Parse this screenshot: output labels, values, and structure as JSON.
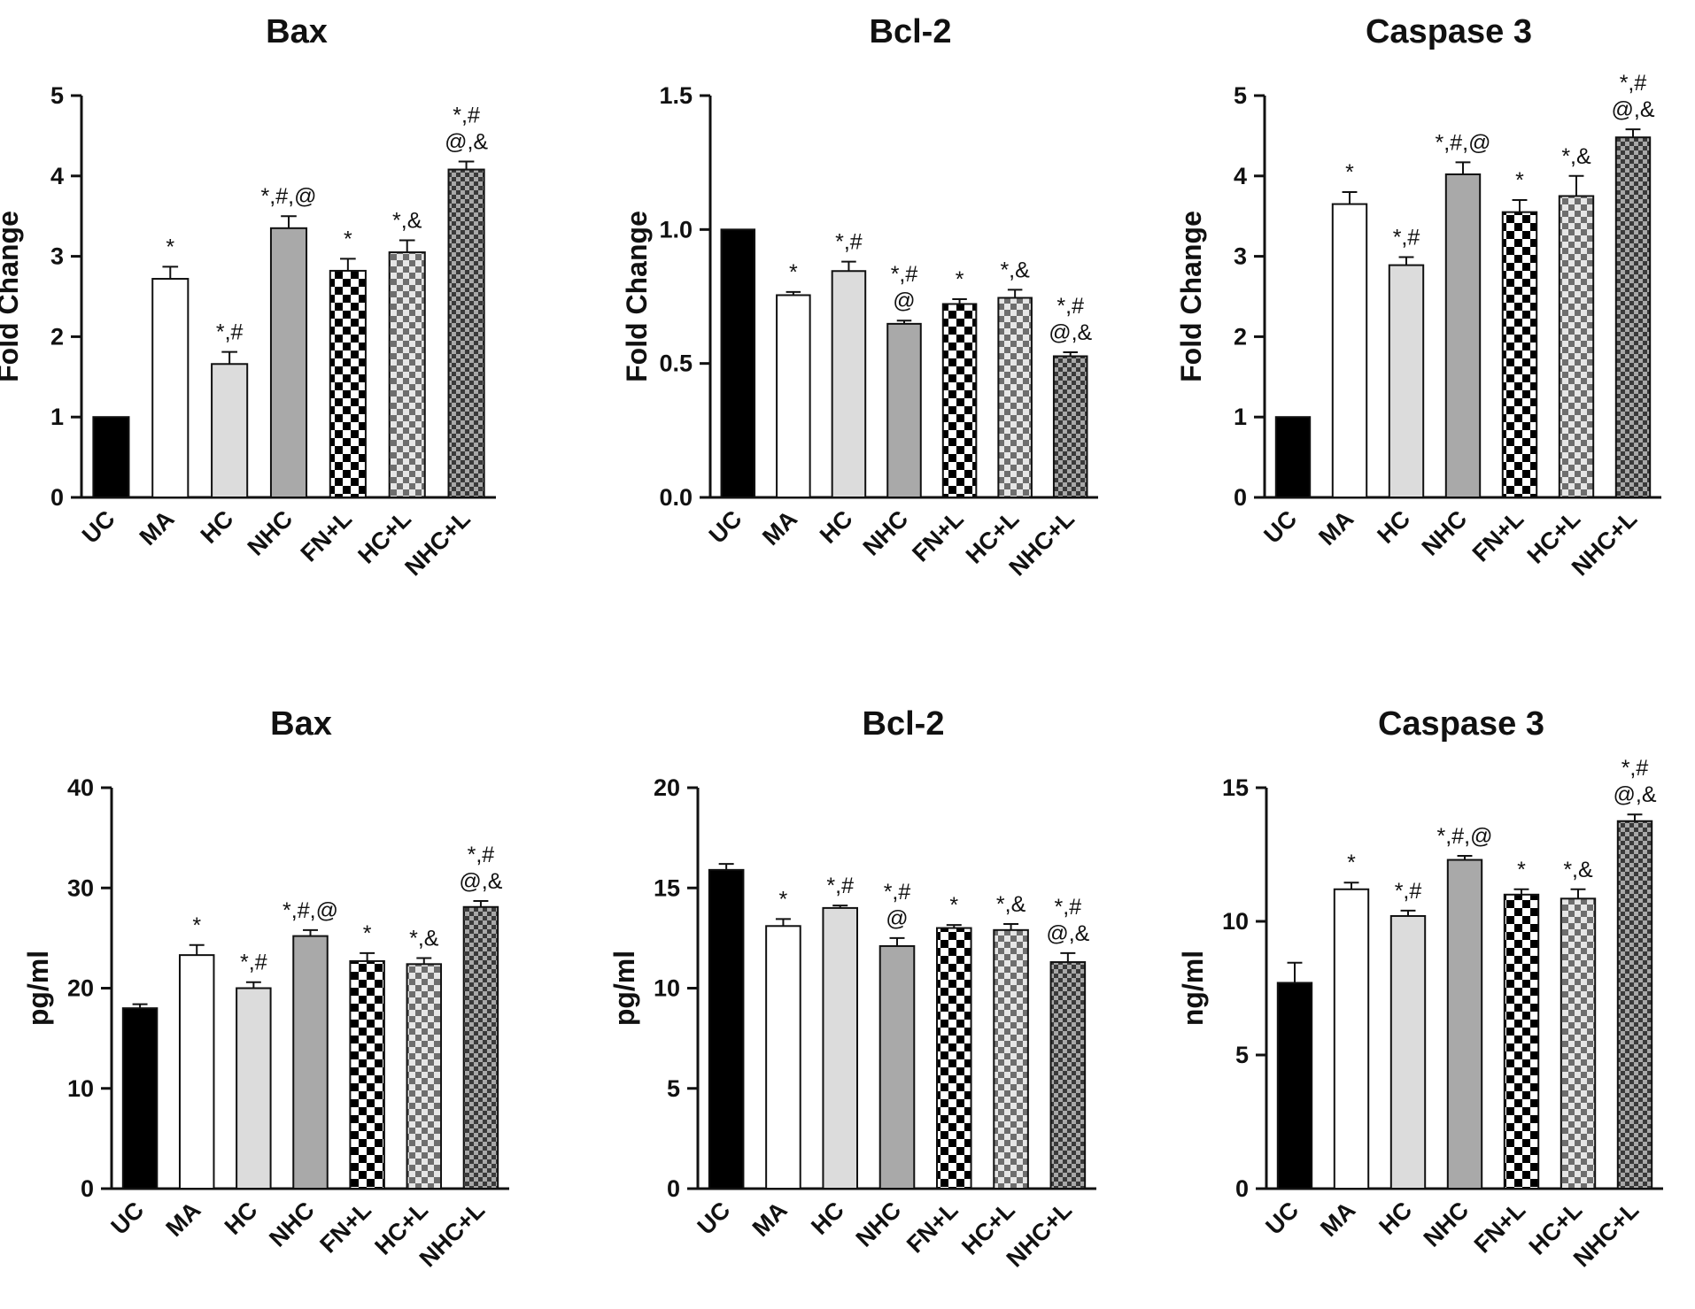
{
  "figure_description_none": "",
  "palette": {
    "UC": "#000000",
    "MA": "#ffffff",
    "HC": "#dcdcdc",
    "NHC": "#a9a9a9",
    "FN+L": "checker-large",
    "HC+L": "checker-medium",
    "NHC+L": "checker-small-dark"
  },
  "chart_data": [
    {
      "type": "bar",
      "title": "Bax",
      "ylabel": "Fold Change",
      "xlabel": "",
      "categories": [
        "UC",
        "MA",
        "HC",
        "NHC",
        "FN+L",
        "HC+L",
        "NHC+L"
      ],
      "values": [
        1.0,
        2.72,
        1.66,
        3.35,
        2.82,
        3.05,
        4.08
      ],
      "errors": [
        0.0,
        0.15,
        0.15,
        0.15,
        0.15,
        0.15,
        0.1
      ],
      "significance": [
        [],
        [
          "*"
        ],
        [
          "*,#"
        ],
        [
          "*,#,@"
        ],
        [
          "*"
        ],
        [
          "*,&"
        ],
        [
          "*,#",
          "@,&"
        ]
      ],
      "ylim": [
        0,
        5
      ],
      "yticks": [
        0,
        1,
        2,
        3,
        4,
        5
      ],
      "ytick_labels": [
        "0",
        "1",
        "2",
        "3",
        "4",
        "5"
      ]
    },
    {
      "type": "bar",
      "title": "Bcl-2",
      "ylabel": "Fold Change",
      "xlabel": "",
      "categories": [
        "UC",
        "MA",
        "HC",
        "NHC",
        "FN+L",
        "HC+L",
        "NHC+L"
      ],
      "values": [
        1.0,
        0.755,
        0.845,
        0.648,
        0.722,
        0.745,
        0.527
      ],
      "errors": [
        0.0,
        0.012,
        0.035,
        0.012,
        0.018,
        0.03,
        0.015
      ],
      "significance": [
        [],
        [
          "*"
        ],
        [
          "*,#"
        ],
        [
          "*,#",
          "@"
        ],
        [
          "*"
        ],
        [
          "*,&"
        ],
        [
          "*,#",
          "@,&"
        ]
      ],
      "ylim": [
        0,
        1.5
      ],
      "yticks": [
        0,
        0.5,
        1.0,
        1.5
      ],
      "ytick_labels": [
        "0.0",
        "0.5",
        "1.0",
        "1.5"
      ]
    },
    {
      "type": "bar",
      "title": "Caspase 3",
      "ylabel": "Fold Change",
      "xlabel": "",
      "categories": [
        "UC",
        "MA",
        "HC",
        "NHC",
        "FN+L",
        "HC+L",
        "NHC+L"
      ],
      "values": [
        1.0,
        3.65,
        2.89,
        4.02,
        3.55,
        3.75,
        4.48
      ],
      "errors": [
        0.0,
        0.15,
        0.1,
        0.15,
        0.15,
        0.25,
        0.1
      ],
      "significance": [
        [],
        [
          "*"
        ],
        [
          "*,#"
        ],
        [
          "*,#,@"
        ],
        [
          "*"
        ],
        [
          "*,&"
        ],
        [
          "*,#",
          "@,&"
        ]
      ],
      "ylim": [
        0,
        5
      ],
      "yticks": [
        0,
        1,
        2,
        3,
        4,
        5
      ],
      "ytick_labels": [
        "0",
        "1",
        "2",
        "3",
        "4",
        "5"
      ]
    },
    {
      "type": "bar",
      "title": "Bax",
      "ylabel": "pg/ml",
      "xlabel": "",
      "categories": [
        "UC",
        "MA",
        "HC",
        "NHC",
        "FN+L",
        "HC+L",
        "NHC+L"
      ],
      "values": [
        18.0,
        23.3,
        20.0,
        25.2,
        22.7,
        22.4,
        28.1
      ],
      "errors": [
        0.4,
        1.0,
        0.6,
        0.6,
        0.8,
        0.6,
        0.6
      ],
      "significance": [
        [],
        [
          "*"
        ],
        [
          "*,#"
        ],
        [
          "*,#,@"
        ],
        [
          "*"
        ],
        [
          "*,&"
        ],
        [
          "*,#",
          "@,&"
        ]
      ],
      "ylim": [
        0,
        40
      ],
      "yticks": [
        0,
        10,
        20,
        30,
        40
      ],
      "ytick_labels": [
        "0",
        "10",
        "20",
        "30",
        "40"
      ]
    },
    {
      "type": "bar",
      "title": "Bcl-2",
      "ylabel": "pg/ml",
      "xlabel": "",
      "categories": [
        "UC",
        "MA",
        "HC",
        "NHC",
        "FN+L",
        "HC+L",
        "NHC+L"
      ],
      "values": [
        15.9,
        13.1,
        14.0,
        12.1,
        13.0,
        12.9,
        11.3
      ],
      "errors": [
        0.3,
        0.35,
        0.12,
        0.4,
        0.15,
        0.3,
        0.45
      ],
      "significance": [
        [],
        [
          "*"
        ],
        [
          "*,#"
        ],
        [
          "*,#",
          "@"
        ],
        [
          "*"
        ],
        [
          "*,&"
        ],
        [
          "*,#",
          "@,&"
        ]
      ],
      "ylim": [
        0,
        20
      ],
      "yticks": [
        0,
        5,
        10,
        15,
        20
      ],
      "ytick_labels": [
        "0",
        "5",
        "10",
        "15",
        "20"
      ]
    },
    {
      "type": "bar",
      "title": "Caspase 3",
      "ylabel": "ng/ml",
      "xlabel": "",
      "categories": [
        "UC",
        "MA",
        "HC",
        "NHC",
        "FN+L",
        "HC+L",
        "NHC+L"
      ],
      "values": [
        7.7,
        11.2,
        10.2,
        12.3,
        11.0,
        10.85,
        13.75
      ],
      "errors": [
        0.75,
        0.25,
        0.2,
        0.15,
        0.2,
        0.35,
        0.25
      ],
      "significance": [
        [],
        [
          "*"
        ],
        [
          "*,#"
        ],
        [
          "*,#,@"
        ],
        [
          "*"
        ],
        [
          "*,&"
        ],
        [
          "*,#",
          "@,&"
        ]
      ],
      "ylim": [
        0,
        15
      ],
      "yticks": [
        0,
        5,
        10,
        15
      ],
      "ytick_labels": [
        "0",
        "5",
        "10",
        "15"
      ]
    }
  ]
}
